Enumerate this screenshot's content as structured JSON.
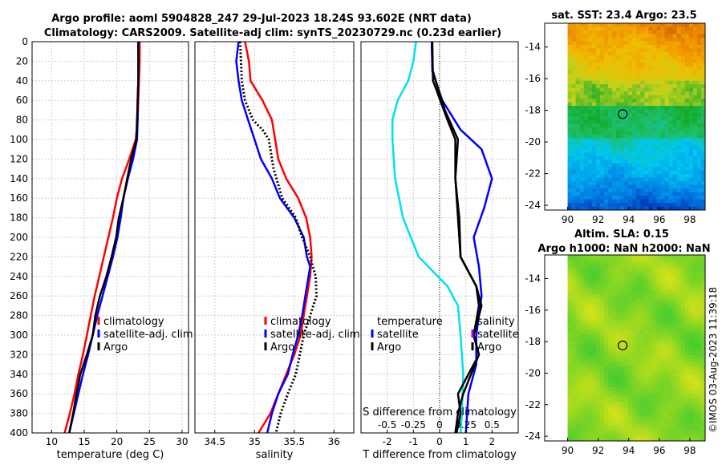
{
  "header": {
    "line1": "Argo profile: aoml 5904828_247 29-Jul-2023 18.24S 93.602E (NRT data)",
    "line2": "Climatology: CARS2009. Satellite-adj clim: synTS_20230729.nc (0.23d earlier)"
  },
  "colors": {
    "climatology": "#ff0000",
    "satellite": "#0000ff",
    "argo": "#000000",
    "t_diff_clim": "#00e0f0",
    "zero_line": "#000000"
  },
  "chart_data": [
    {
      "type": "line",
      "id": "temperature",
      "xlabel": "temperature (deg C)",
      "ylabel": "",
      "xlim": [
        7,
        31
      ],
      "ylim": [
        400,
        0
      ],
      "xticks": [
        10,
        15,
        20,
        25,
        30
      ],
      "yticks": [
        0,
        20,
        40,
        60,
        80,
        100,
        120,
        140,
        160,
        180,
        200,
        220,
        240,
        260,
        280,
        300,
        320,
        340,
        360,
        380,
        400
      ],
      "grid": true,
      "legend": [
        "climatology",
        "satellite-adj. clim",
        "Argo"
      ],
      "legend_position": "lower-right",
      "series": [
        {
          "name": "climatology",
          "style": "solid",
          "points": [
            [
              23.5,
              0
            ],
            [
              23.5,
              20
            ],
            [
              23.4,
              40
            ],
            [
              23.3,
              60
            ],
            [
              23.2,
              80
            ],
            [
              22.9,
              100
            ],
            [
              21.9,
              120
            ],
            [
              20.8,
              140
            ],
            [
              20.0,
              160
            ],
            [
              19.4,
              180
            ],
            [
              18.7,
              200
            ],
            [
              18.0,
              220
            ],
            [
              17.3,
              240
            ],
            [
              16.6,
              260
            ],
            [
              16.0,
              280
            ],
            [
              15.4,
              300
            ],
            [
              14.8,
              320
            ],
            [
              14.1,
              340
            ],
            [
              13.5,
              360
            ],
            [
              12.8,
              380
            ],
            [
              12.0,
              400
            ]
          ]
        },
        {
          "name": "satellite-adj. clim",
          "style": "solid",
          "points": [
            [
              23.3,
              0
            ],
            [
              23.3,
              20
            ],
            [
              23.3,
              40
            ],
            [
              23.2,
              60
            ],
            [
              23.2,
              80
            ],
            [
              23.1,
              100
            ],
            [
              22.5,
              120
            ],
            [
              21.7,
              140
            ],
            [
              21.0,
              160
            ],
            [
              20.6,
              180
            ],
            [
              20.1,
              200
            ],
            [
              19.4,
              220
            ],
            [
              18.6,
              240
            ],
            [
              17.8,
              260
            ],
            [
              17.0,
              280
            ],
            [
              16.3,
              300
            ],
            [
              15.6,
              320
            ],
            [
              14.8,
              340
            ],
            [
              14.1,
              360
            ],
            [
              13.4,
              380
            ],
            [
              12.7,
              400
            ]
          ]
        },
        {
          "name": "Argo",
          "style": "solid",
          "points": [
            [
              23.3,
              0
            ],
            [
              23.3,
              20
            ],
            [
              23.3,
              40
            ],
            [
              23.2,
              60
            ],
            [
              23.1,
              80
            ],
            [
              23.0,
              100
            ],
            [
              22.2,
              120
            ],
            [
              21.6,
              140
            ],
            [
              21.0,
              160
            ],
            [
              20.3,
              180
            ],
            [
              19.9,
              200
            ],
            [
              19.2,
              220
            ],
            [
              18.4,
              240
            ],
            [
              17.4,
              260
            ],
            [
              16.7,
              280
            ],
            [
              16.3,
              300
            ],
            [
              15.4,
              320
            ],
            [
              14.4,
              340
            ],
            [
              13.8,
              360
            ],
            [
              13.3,
              380
            ],
            [
              12.7,
              400
            ]
          ]
        }
      ]
    },
    {
      "type": "line",
      "id": "salinity",
      "xlabel": "salinity",
      "xlim": [
        34.25,
        36.25
      ],
      "ylim": [
        400,
        0
      ],
      "xticks": [
        34.5,
        35,
        35.5,
        36
      ],
      "xtick_labels": [
        "34.5",
        "35",
        "35.5",
        "36"
      ],
      "grid": true,
      "legend": [
        "climatology",
        "satellite-adj. clim",
        "Argo"
      ],
      "legend_position": "lower-right",
      "series": [
        {
          "name": "climatology",
          "style": "solid",
          "points": [
            [
              34.88,
              0
            ],
            [
              34.93,
              20
            ],
            [
              34.95,
              40
            ],
            [
              35.1,
              60
            ],
            [
              35.22,
              80
            ],
            [
              35.26,
              100
            ],
            [
              35.3,
              120
            ],
            [
              35.4,
              140
            ],
            [
              35.55,
              160
            ],
            [
              35.65,
              180
            ],
            [
              35.7,
              200
            ],
            [
              35.72,
              220
            ],
            [
              35.7,
              240
            ],
            [
              35.66,
              260
            ],
            [
              35.62,
              280
            ],
            [
              35.58,
              300
            ],
            [
              35.5,
              320
            ],
            [
              35.4,
              340
            ],
            [
              35.3,
              360
            ],
            [
              35.2,
              380
            ],
            [
              35.05,
              400
            ]
          ]
        },
        {
          "name": "satellite-adj. clim",
          "style": "solid",
          "points": [
            [
              34.8,
              0
            ],
            [
              34.77,
              20
            ],
            [
              34.8,
              40
            ],
            [
              34.84,
              60
            ],
            [
              34.92,
              80
            ],
            [
              35.0,
              100
            ],
            [
              35.08,
              120
            ],
            [
              35.22,
              140
            ],
            [
              35.32,
              160
            ],
            [
              35.5,
              180
            ],
            [
              35.62,
              200
            ],
            [
              35.66,
              220
            ],
            [
              35.7,
              230
            ],
            [
              35.68,
              240
            ],
            [
              35.64,
              260
            ],
            [
              35.6,
              280
            ],
            [
              35.55,
              300
            ],
            [
              35.48,
              320
            ],
            [
              35.42,
              340
            ],
            [
              35.3,
              360
            ],
            [
              35.22,
              380
            ],
            [
              35.16,
              400
            ]
          ]
        },
        {
          "name": "Argo",
          "style": "dotted",
          "points": [
            [
              34.82,
              0
            ],
            [
              34.83,
              20
            ],
            [
              34.84,
              40
            ],
            [
              34.88,
              60
            ],
            [
              34.98,
              80
            ],
            [
              35.1,
              90
            ],
            [
              35.18,
              100
            ],
            [
              35.24,
              130
            ],
            [
              35.35,
              160
            ],
            [
              35.52,
              180
            ],
            [
              35.6,
              200
            ],
            [
              35.7,
              220
            ],
            [
              35.77,
              240
            ],
            [
              35.78,
              260
            ],
            [
              35.7,
              280
            ],
            [
              35.62,
              300
            ],
            [
              35.57,
              320
            ],
            [
              35.52,
              340
            ],
            [
              35.42,
              360
            ],
            [
              35.33,
              380
            ],
            [
              35.27,
              400
            ]
          ]
        }
      ]
    },
    {
      "type": "line",
      "id": "differences",
      "xlabel": "T difference from climatology",
      "xlabel_top": "S difference from climatology",
      "xlim": [
        -3,
        3
      ],
      "ylim": [
        400,
        0
      ],
      "xticks": [
        -2,
        -1,
        0,
        1,
        2
      ],
      "xtick_labels": [
        "-2",
        "-1",
        "0",
        "1",
        "2"
      ],
      "s_ticks": [
        "-0.5",
        "-0.25",
        "0",
        "0.25",
        "0.5"
      ],
      "grid": true,
      "legend_temperature": {
        "title": "temperature",
        "entries": [
          "satellite",
          "Argo"
        ]
      },
      "legend_salinity": {
        "title": "salinity",
        "entries": [
          "satellite",
          "Argo"
        ]
      },
      "series": [
        {
          "name": "temperature satellite",
          "style": "solid",
          "points": [
            [
              -0.9,
              0
            ],
            [
              -1.0,
              20
            ],
            [
              -1.2,
              40
            ],
            [
              -1.6,
              60
            ],
            [
              -1.8,
              80
            ],
            [
              -1.8,
              100
            ],
            [
              -1.7,
              140
            ],
            [
              -1.4,
              180
            ],
            [
              -0.8,
              220
            ],
            [
              0.3,
              250
            ],
            [
              0.7,
              270
            ],
            [
              0.8,
              300
            ],
            [
              0.9,
              340
            ],
            [
              0.85,
              380
            ],
            [
              0.8,
              400
            ]
          ]
        },
        {
          "name": "temperature Argo",
          "style": "solid",
          "points": [
            [
              -0.3,
              0
            ],
            [
              -0.28,
              20
            ],
            [
              -0.25,
              40
            ],
            [
              0.3,
              80
            ],
            [
              0.6,
              100
            ],
            [
              0.6,
              140
            ],
            [
              0.7,
              180
            ],
            [
              0.8,
              220
            ],
            [
              1.4,
              250
            ],
            [
              1.5,
              270
            ],
            [
              1.3,
              300
            ],
            [
              1.5,
              320
            ],
            [
              1.1,
              340
            ],
            [
              0.7,
              360
            ],
            [
              0.8,
              380
            ],
            [
              0.65,
              400
            ]
          ]
        },
        {
          "name": "salinity satellite",
          "style": "solid",
          "points": [
            [
              -0.3,
              0
            ],
            [
              -0.28,
              30
            ],
            [
              0.1,
              60
            ],
            [
              0.8,
              90
            ],
            [
              1.6,
              110
            ],
            [
              2.0,
              140
            ],
            [
              1.7,
              170
            ],
            [
              1.3,
              200
            ],
            [
              1.5,
              230
            ],
            [
              1.6,
              260
            ],
            [
              1.4,
              300
            ],
            [
              1.4,
              330
            ],
            [
              1.1,
              360
            ],
            [
              1.0,
              400
            ]
          ]
        },
        {
          "name": "salinity Argo",
          "style": "solid",
          "points": [
            [
              -0.28,
              0
            ],
            [
              -0.26,
              30
            ],
            [
              0.2,
              70
            ],
            [
              0.7,
              100
            ],
            [
              0.6,
              140
            ],
            [
              0.75,
              180
            ],
            [
              0.8,
              220
            ],
            [
              1.4,
              250
            ],
            [
              1.6,
              270
            ],
            [
              1.3,
              300
            ],
            [
              1.5,
              320
            ],
            [
              1.2,
              340
            ],
            [
              0.9,
              360
            ],
            [
              0.7,
              380
            ],
            [
              0.6,
              400
            ]
          ]
        }
      ]
    },
    {
      "type": "heatmap",
      "id": "sst-map",
      "title": "sat. SST: 23.4 Argo: 23.5",
      "xlim": [
        88.5,
        99
      ],
      "ylim": [
        -24.3,
        -12.5
      ],
      "xticks": [
        90,
        92,
        94,
        96,
        98
      ],
      "yticks": [
        -14,
        -16,
        -18,
        -20,
        -22,
        -24
      ],
      "marker": {
        "lon": 93.6,
        "lat": -18.24
      }
    },
    {
      "type": "heatmap",
      "id": "sla-map",
      "title_line1": "Altim. SLA: 0.15",
      "title_line2": "Argo h1000: NaN h2000: NaN",
      "xlim": [
        88.5,
        99
      ],
      "ylim": [
        -24.3,
        -12.5
      ],
      "xticks": [
        90,
        92,
        94,
        96,
        98
      ],
      "yticks": [
        -14,
        -16,
        -18,
        -20,
        -22,
        -24
      ],
      "marker": {
        "lon": 93.6,
        "lat": -18.24
      }
    }
  ],
  "footer": {
    "credit": "©IMOS 03-Aug-2023 11:39:18"
  }
}
